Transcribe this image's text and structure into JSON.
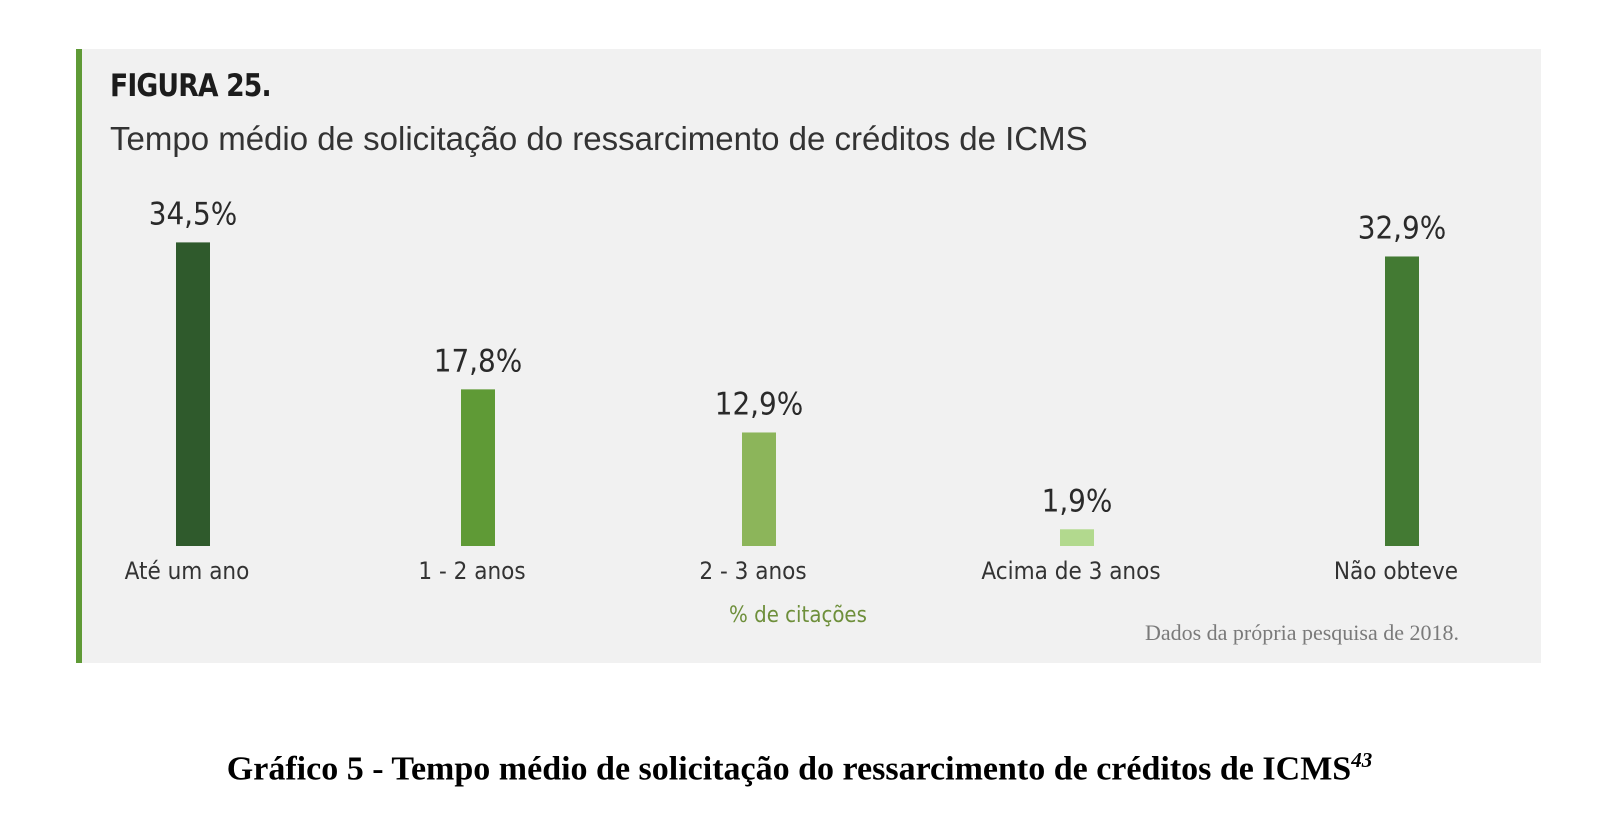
{
  "figure": {
    "label": "FIGURA 25.",
    "title": "Tempo médio de solicitação do ressarcimento de créditos de ICMS",
    "source_note": "Dados da própria pesquisa de 2018."
  },
  "chart_data": {
    "type": "bar",
    "title": "Tempo médio de solicitação do ressarcimento de créditos de ICMS",
    "xlabel": "% de citações",
    "ylabel": "",
    "categories": [
      "Até um ano",
      "1 - 2 anos",
      "2 - 3 anos",
      "Acima de 3 anos",
      "Não obteve"
    ],
    "values": [
      34.5,
      17.8,
      12.9,
      1.9,
      32.9
    ],
    "value_labels": [
      "34,5%",
      "17,8%",
      "12,9%",
      "1,9%",
      "32,9%"
    ],
    "colors": [
      "#2f5a2c",
      "#5f9a36",
      "#8cb55a",
      "#b2d98e",
      "#437a33"
    ],
    "unit_label_color": "#6e8f3b",
    "grid": false,
    "legend": "none"
  },
  "caption": {
    "text": "Gráfico 5 - Tempo médio de solicitação do ressarcimento de créditos de ICMS",
    "footnote": "43"
  }
}
